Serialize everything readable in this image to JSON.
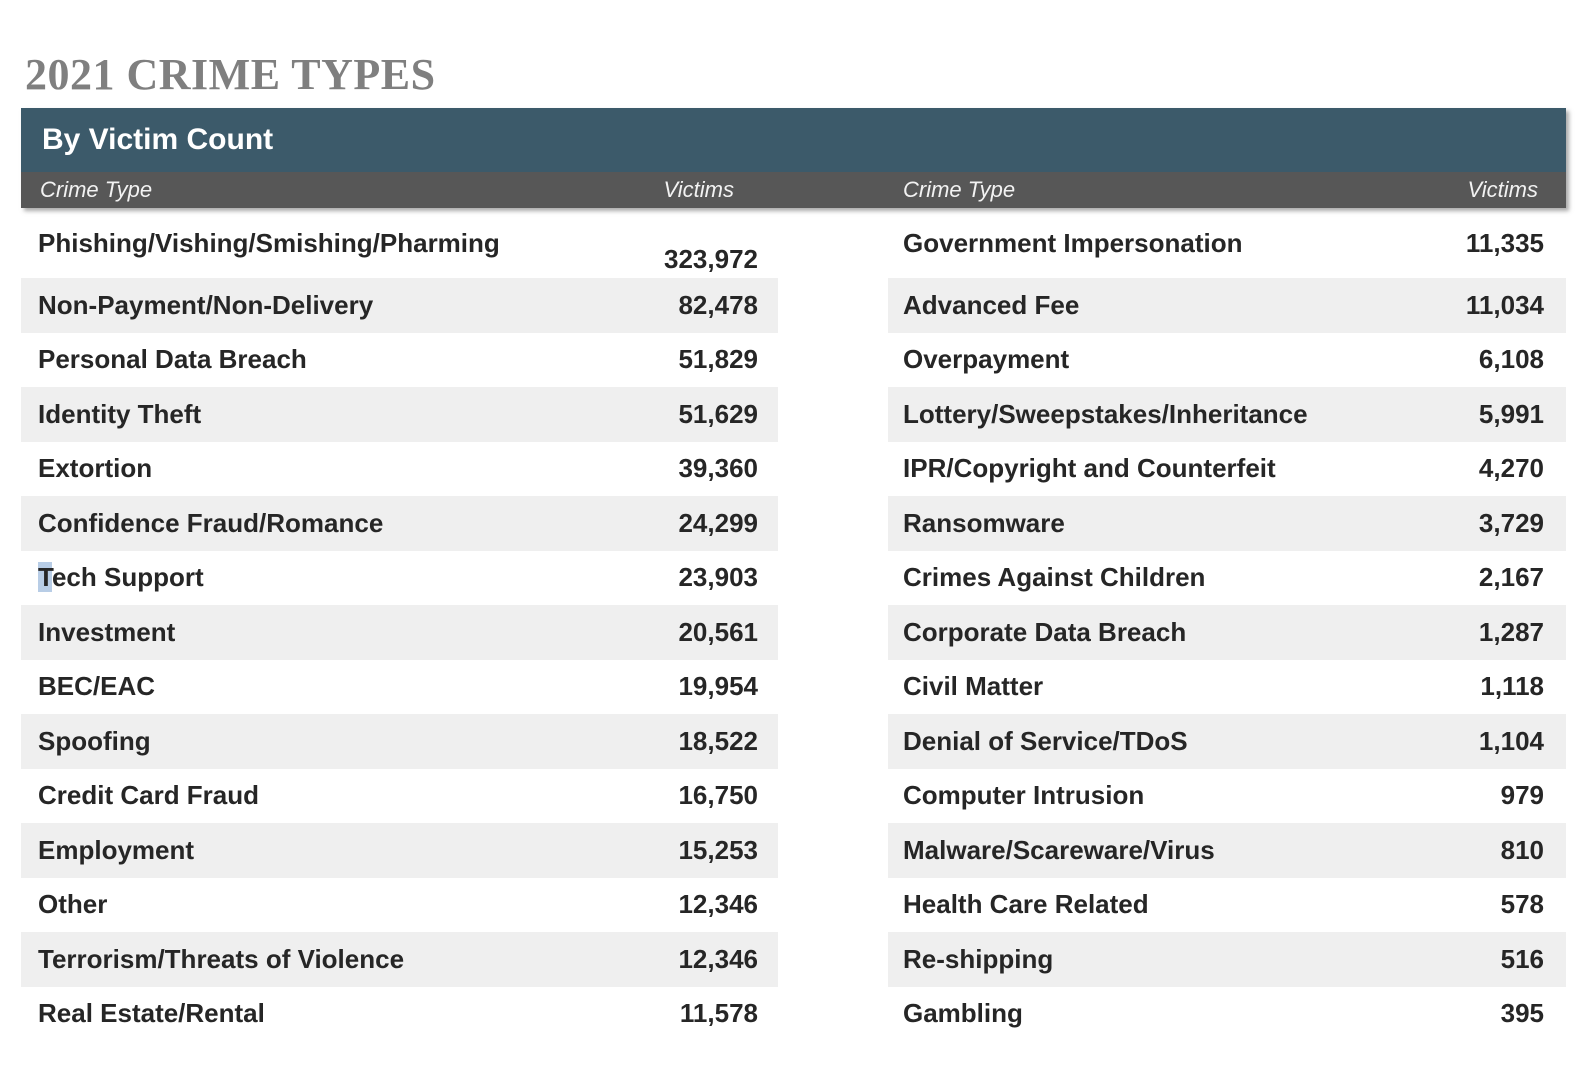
{
  "page": {
    "title": "2021 CRIME TYPES"
  },
  "table": {
    "title": "By Victim Count",
    "column_headers": {
      "crime_type": "Crime Type",
      "victims": "Victims"
    },
    "left_rows": [
      {
        "crime_type": "Phishing/Vishing/Smishing/Pharming",
        "victims": "323,972"
      },
      {
        "crime_type": "Non-Payment/Non-Delivery",
        "victims": "82,478"
      },
      {
        "crime_type": "Personal Data Breach",
        "victims": "51,829"
      },
      {
        "crime_type": "Identity Theft",
        "victims": "51,629"
      },
      {
        "crime_type": "Extortion",
        "victims": "39,360"
      },
      {
        "crime_type": "Confidence Fraud/Romance",
        "victims": "24,299"
      },
      {
        "crime_type": "Tech Support",
        "victims": "23,903",
        "highlight_first_char": true
      },
      {
        "crime_type": "Investment",
        "victims": "20,561"
      },
      {
        "crime_type": "BEC/EAC",
        "victims": "19,954"
      },
      {
        "crime_type": "Spoofing",
        "victims": "18,522"
      },
      {
        "crime_type": "Credit Card Fraud",
        "victims": "16,750"
      },
      {
        "crime_type": "Employment",
        "victims": "15,253"
      },
      {
        "crime_type": "Other",
        "victims": "12,346"
      },
      {
        "crime_type": "Terrorism/Threats of Violence",
        "victims": "12,346"
      },
      {
        "crime_type": "Real Estate/Rental",
        "victims": "11,578"
      }
    ],
    "right_rows": [
      {
        "crime_type": "Government Impersonation",
        "victims": "11,335"
      },
      {
        "crime_type": "Advanced Fee",
        "victims": "11,034"
      },
      {
        "crime_type": "Overpayment",
        "victims": "6,108"
      },
      {
        "crime_type": "Lottery/Sweepstakes/Inheritance",
        "victims": "5,991"
      },
      {
        "crime_type": "IPR/Copyright and Counterfeit",
        "victims": "4,270"
      },
      {
        "crime_type": "Ransomware",
        "victims": "3,729"
      },
      {
        "crime_type": "Crimes Against Children",
        "victims": "2,167"
      },
      {
        "crime_type": "Corporate Data Breach",
        "victims": "1,287"
      },
      {
        "crime_type": "Civil Matter",
        "victims": "1,118"
      },
      {
        "crime_type": "Denial of Service/TDoS",
        "victims": "1,104"
      },
      {
        "crime_type": "Computer Intrusion",
        "victims": "979"
      },
      {
        "crime_type": "Malware/Scareware/Virus",
        "victims": "810"
      },
      {
        "crime_type": "Health Care Related",
        "victims": "578"
      },
      {
        "crime_type": "Re-shipping",
        "victims": "516"
      },
      {
        "crime_type": "Gambling",
        "victims": "395"
      }
    ]
  },
  "colors": {
    "header_teal": "#3c5a6a",
    "subheader_gray": "#575757",
    "stripe_gray": "#efefef",
    "title_gray": "#7f7f7f",
    "text_dark": "#262626",
    "selection_blue": "#b8cde6"
  }
}
